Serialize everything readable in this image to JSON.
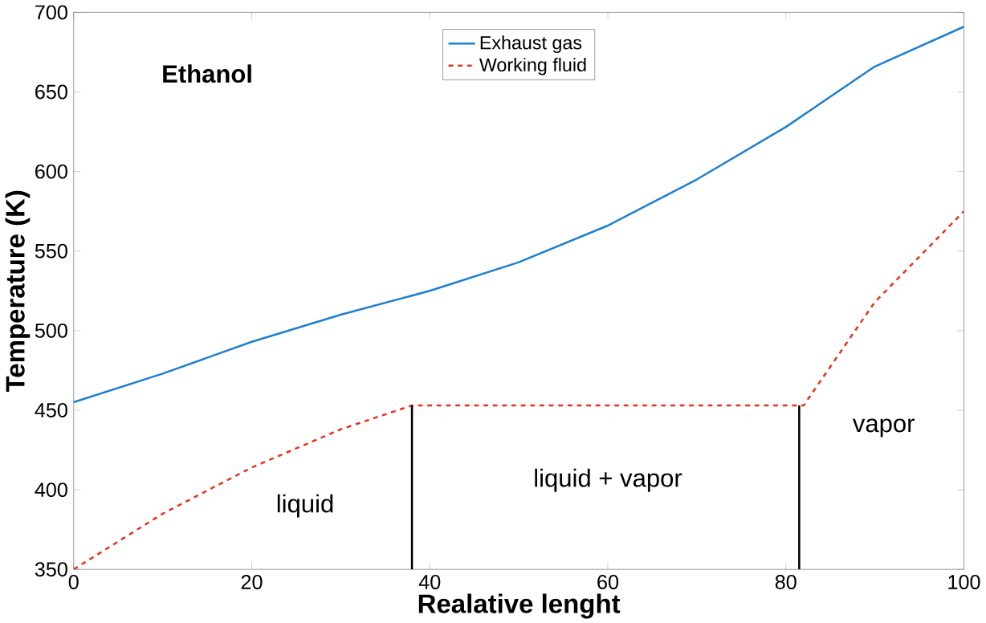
{
  "chart_data": {
    "type": "line",
    "xlabel": "Realative lenght",
    "ylabel": "Temperature (K)",
    "xlim": [
      0,
      100
    ],
    "ylim": [
      350,
      700
    ],
    "xticks": [
      0,
      20,
      40,
      60,
      80,
      100
    ],
    "yticks": [
      350,
      400,
      450,
      500,
      550,
      600,
      650,
      700
    ],
    "legend": "top",
    "grid": false,
    "series": [
      {
        "name": "Exhaust gas",
        "color": "#1f7fcf",
        "line_style": "solid",
        "x": [
          0,
          10,
          20,
          30,
          40,
          50,
          60,
          70,
          80,
          90,
          100
        ],
        "values": [
          455,
          473,
          493,
          510,
          525,
          543,
          566,
          595,
          628,
          666,
          691
        ]
      },
      {
        "name": "Working fluid",
        "color": "#e8321e",
        "line_style": "dashed",
        "x": [
          0,
          10,
          20,
          30,
          38,
          82,
          90,
          100
        ],
        "values": [
          350,
          385,
          414,
          438,
          453,
          453,
          518,
          575
        ]
      },
      {
        "color": "#000000",
        "line_style": "solid",
        "x": [
          38,
          38
        ],
        "values": [
          350,
          453
        ]
      },
      {
        "color": "#000000",
        "line_style": "solid",
        "x": [
          81.5,
          81.5
        ],
        "values": [
          350,
          453
        ]
      }
    ],
    "annotations": [
      "Ethanol",
      "liquid",
      "liquid + vapor",
      "vapor"
    ]
  }
}
